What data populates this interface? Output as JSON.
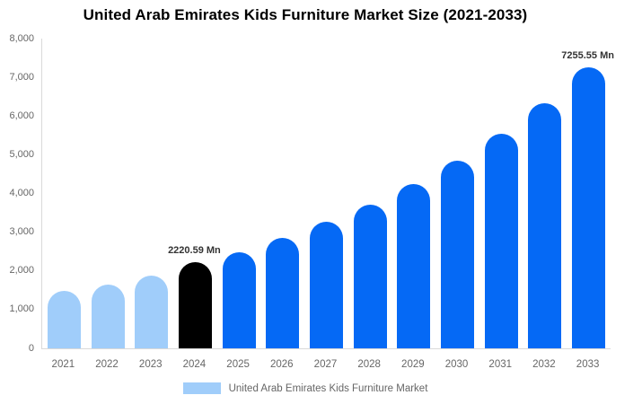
{
  "chart_data": {
    "type": "bar",
    "title": "United Arab Emirates Kids Furniture Market Size (2021-2033)",
    "categories": [
      "2021",
      "2022",
      "2023",
      "2024",
      "2025",
      "2026",
      "2027",
      "2028",
      "2029",
      "2030",
      "2031",
      "2032",
      "2033"
    ],
    "values": [
      1480,
      1640,
      1885,
      2220.59,
      2470,
      2855,
      3260,
      3705,
      4245,
      4840,
      5535,
      6330,
      7255.55
    ],
    "bar_color_keys": [
      "light",
      "light",
      "light",
      "black",
      "blue",
      "blue",
      "blue",
      "blue",
      "blue",
      "blue",
      "blue",
      "blue",
      "blue"
    ],
    "colors": {
      "light": "#A0CDFA",
      "blue": "#0569F5",
      "black": "#000000",
      "axis_line": "#D9D9D9",
      "tick_text": "#666666",
      "data_label_text": "#333333",
      "title_text": "#000000"
    },
    "annotations": [
      {
        "index": 3,
        "text": "2220.59 Mn"
      },
      {
        "index": 12,
        "text": "7255.55 Mn"
      }
    ],
    "xlabel": "",
    "ylabel": "",
    "ylim": [
      0,
      8000
    ],
    "ytick_step": 1000,
    "ytick_labels": [
      "8,000",
      "7,000",
      "6,000",
      "5,000",
      "4,000",
      "3,000",
      "2,000",
      "1,000",
      "0"
    ],
    "grid": false,
    "legend": {
      "position": "bottom",
      "label": "United Arab Emirates Kids Furniture Market",
      "swatch_color_key": "light"
    }
  }
}
